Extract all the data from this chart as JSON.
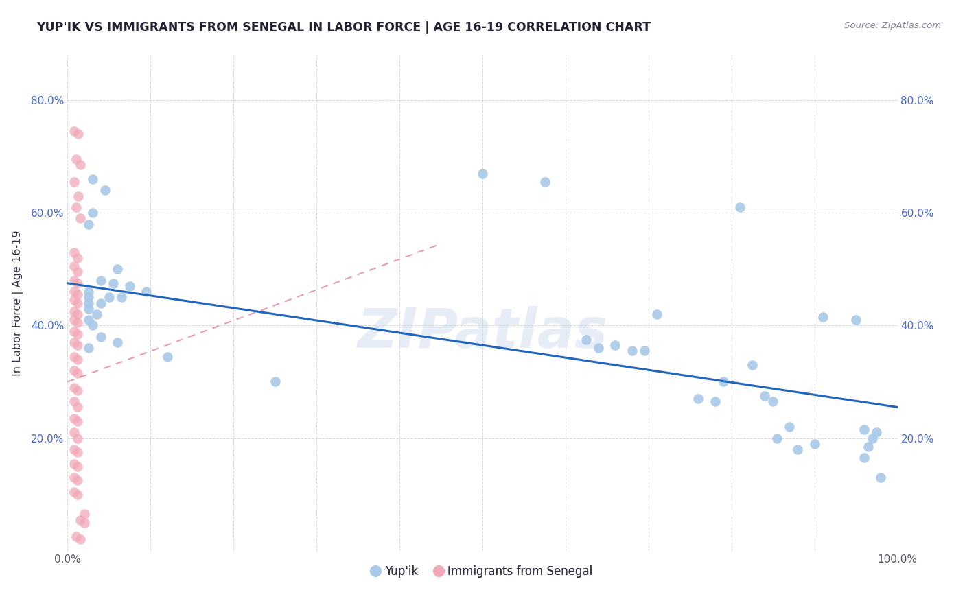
{
  "title": "YUP'IK VS IMMIGRANTS FROM SENEGAL IN LABOR FORCE | AGE 16-19 CORRELATION CHART",
  "source": "Source: ZipAtlas.com",
  "ylabel": "In Labor Force | Age 16-19",
  "xlim": [
    0.0,
    1.0
  ],
  "ylim": [
    0.0,
    0.88
  ],
  "blue_color": "#a8c8e8",
  "pink_color": "#f0a8b8",
  "line_blue_color": "#2266bb",
  "line_pink_color": "#dd6688",
  "legend_text_color": "#4466cc",
  "watermark_color": "#ccddeeff",
  "background_color": "#ffffff",
  "grid_color": "#cccccc",
  "watermark": "ZIPatlas",
  "yupik_points": [
    [
      0.03,
      0.66
    ],
    [
      0.045,
      0.64
    ],
    [
      0.03,
      0.6
    ],
    [
      0.025,
      0.58
    ],
    [
      0.06,
      0.5
    ],
    [
      0.04,
      0.48
    ],
    [
      0.055,
      0.475
    ],
    [
      0.075,
      0.47
    ],
    [
      0.025,
      0.46
    ],
    [
      0.095,
      0.46
    ],
    [
      0.025,
      0.45
    ],
    [
      0.05,
      0.45
    ],
    [
      0.065,
      0.45
    ],
    [
      0.025,
      0.44
    ],
    [
      0.04,
      0.44
    ],
    [
      0.025,
      0.43
    ],
    [
      0.035,
      0.42
    ],
    [
      0.025,
      0.41
    ],
    [
      0.03,
      0.4
    ],
    [
      0.04,
      0.38
    ],
    [
      0.06,
      0.37
    ],
    [
      0.025,
      0.36
    ],
    [
      0.12,
      0.345
    ],
    [
      0.25,
      0.3
    ],
    [
      0.5,
      0.67
    ],
    [
      0.575,
      0.655
    ],
    [
      0.625,
      0.375
    ],
    [
      0.68,
      0.355
    ],
    [
      0.695,
      0.355
    ],
    [
      0.64,
      0.36
    ],
    [
      0.66,
      0.365
    ],
    [
      0.71,
      0.42
    ],
    [
      0.76,
      0.27
    ],
    [
      0.78,
      0.265
    ],
    [
      0.79,
      0.3
    ],
    [
      0.81,
      0.61
    ],
    [
      0.825,
      0.33
    ],
    [
      0.84,
      0.275
    ],
    [
      0.85,
      0.265
    ],
    [
      0.855,
      0.2
    ],
    [
      0.87,
      0.22
    ],
    [
      0.88,
      0.18
    ],
    [
      0.9,
      0.19
    ],
    [
      0.91,
      0.415
    ],
    [
      0.95,
      0.41
    ],
    [
      0.96,
      0.215
    ],
    [
      0.965,
      0.185
    ],
    [
      0.97,
      0.2
    ],
    [
      0.96,
      0.165
    ],
    [
      0.975,
      0.21
    ],
    [
      0.98,
      0.13
    ]
  ],
  "senegal_points": [
    [
      0.008,
      0.745
    ],
    [
      0.013,
      0.74
    ],
    [
      0.01,
      0.695
    ],
    [
      0.015,
      0.685
    ],
    [
      0.008,
      0.655
    ],
    [
      0.013,
      0.63
    ],
    [
      0.01,
      0.61
    ],
    [
      0.015,
      0.59
    ],
    [
      0.008,
      0.53
    ],
    [
      0.012,
      0.52
    ],
    [
      0.008,
      0.505
    ],
    [
      0.012,
      0.495
    ],
    [
      0.008,
      0.48
    ],
    [
      0.012,
      0.475
    ],
    [
      0.008,
      0.46
    ],
    [
      0.012,
      0.455
    ],
    [
      0.008,
      0.445
    ],
    [
      0.012,
      0.44
    ],
    [
      0.008,
      0.425
    ],
    [
      0.012,
      0.42
    ],
    [
      0.008,
      0.41
    ],
    [
      0.012,
      0.405
    ],
    [
      0.008,
      0.39
    ],
    [
      0.012,
      0.385
    ],
    [
      0.008,
      0.37
    ],
    [
      0.012,
      0.365
    ],
    [
      0.008,
      0.345
    ],
    [
      0.012,
      0.34
    ],
    [
      0.008,
      0.32
    ],
    [
      0.012,
      0.315
    ],
    [
      0.008,
      0.29
    ],
    [
      0.012,
      0.285
    ],
    [
      0.008,
      0.265
    ],
    [
      0.012,
      0.255
    ],
    [
      0.008,
      0.235
    ],
    [
      0.012,
      0.23
    ],
    [
      0.008,
      0.21
    ],
    [
      0.012,
      0.2
    ],
    [
      0.008,
      0.18
    ],
    [
      0.012,
      0.175
    ],
    [
      0.008,
      0.155
    ],
    [
      0.012,
      0.15
    ],
    [
      0.008,
      0.13
    ],
    [
      0.012,
      0.125
    ],
    [
      0.008,
      0.105
    ],
    [
      0.012,
      0.1
    ],
    [
      0.02,
      0.065
    ],
    [
      0.015,
      0.055
    ],
    [
      0.02,
      0.05
    ],
    [
      0.01,
      0.025
    ],
    [
      0.015,
      0.02
    ]
  ],
  "blue_line_x0": 0.0,
  "blue_line_y0": 0.475,
  "blue_line_x1": 1.0,
  "blue_line_y1": 0.255,
  "pink_line_x0": 0.0,
  "pink_line_y0": 0.3,
  "pink_line_x1": 0.45,
  "pink_line_y1": 0.545
}
